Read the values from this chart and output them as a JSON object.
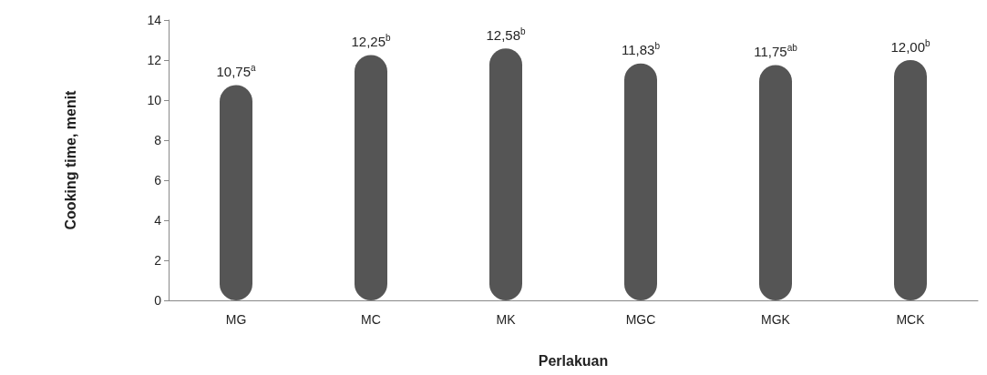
{
  "chart_data": {
    "type": "bar",
    "xlabel": "Perlakuan",
    "ylabel": "Cooking time, menit",
    "categories": [
      "MG",
      "MC",
      "MK",
      "MGC",
      "MGK",
      "MCK"
    ],
    "values": [
      10.75,
      12.25,
      12.58,
      11.83,
      11.75,
      12.0
    ],
    "value_labels": [
      "10,75$^{a}$",
      "12,25$^{b}$",
      "12,58$^{b}$",
      "11,83$^{b}$",
      "11,75$^{ab}$",
      "12,00$^{b}$"
    ],
    "color": "#555555",
    "ylim": [
      0,
      14
    ],
    "yticks": [
      0,
      2,
      4,
      6,
      8,
      10,
      12,
      14
    ],
    "grid": false
  }
}
